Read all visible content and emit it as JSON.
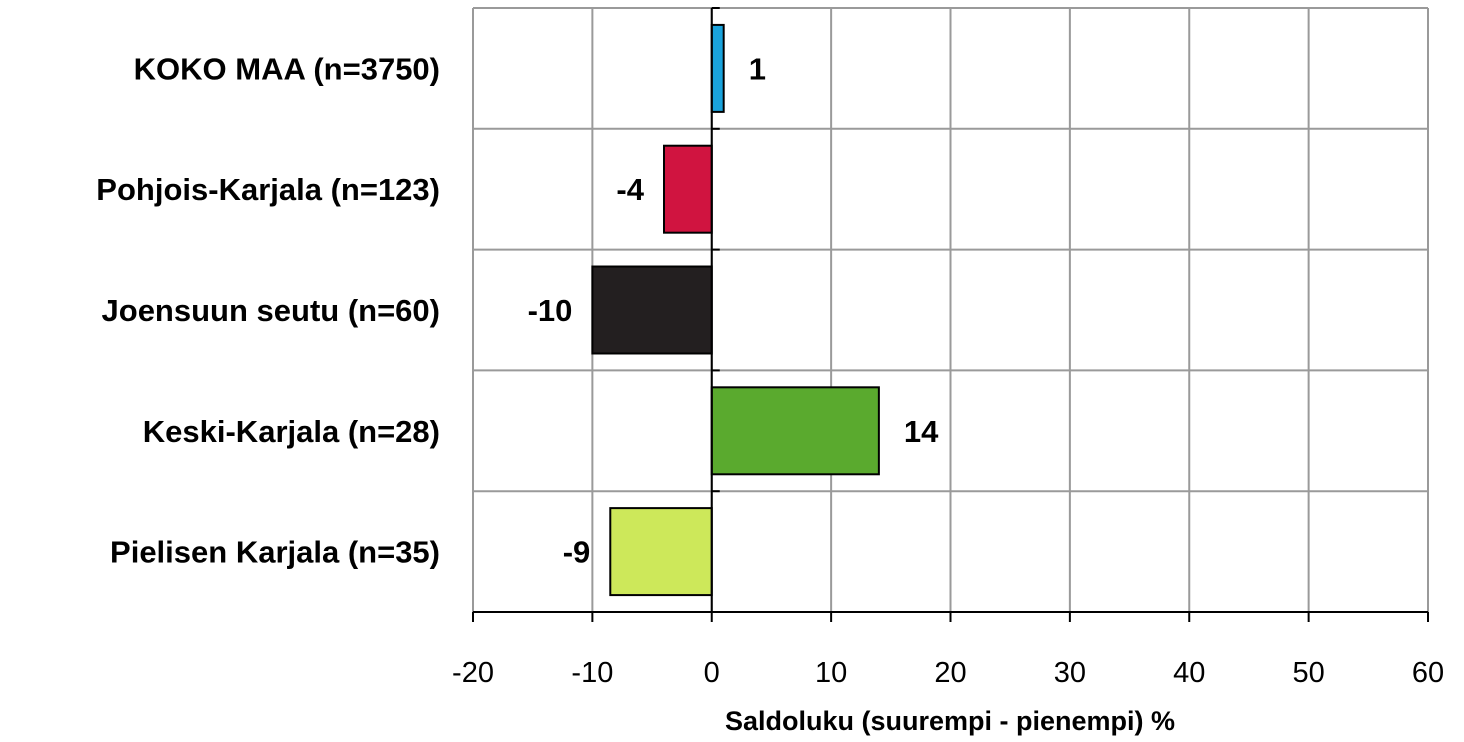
{
  "chart_data": {
    "type": "bar",
    "orientation": "horizontal",
    "categories": [
      "KOKO MAA (n=3750)",
      "Pohjois-Karjala (n=123)",
      "Joensuun seutu (n=60)",
      "Keski-Karjala (n=28)",
      "Pielisen Karjala (n=35)"
    ],
    "values": [
      1,
      -4,
      -10,
      14,
      -8.5
    ],
    "data_labels": [
      "1",
      "-4",
      "-10",
      "14",
      "-9"
    ],
    "colors": [
      "#1aa3dc",
      "#d01440",
      "#231f20",
      "#5aaa2e",
      "#cde85a"
    ],
    "xlabel": "Saldoluku (suurempi - pienempi) %",
    "ylabel": "",
    "title": "",
    "xlim": [
      -20,
      60
    ],
    "xticks": [
      "-20",
      "-10",
      "0",
      "10",
      "20",
      "30",
      "40",
      "50",
      "60"
    ],
    "grid": true,
    "legend": "none"
  }
}
